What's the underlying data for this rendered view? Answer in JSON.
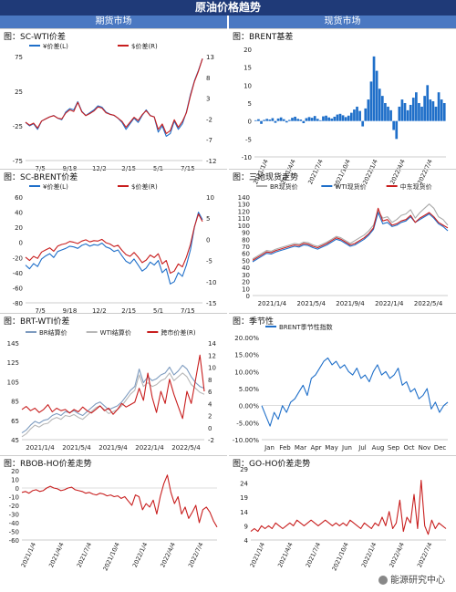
{
  "header": {
    "title": "原油价格趋势"
  },
  "columns": {
    "left": "期货市场",
    "right": "现货市场"
  },
  "watermark": "能源研究中心",
  "colors": {
    "blue": "#1f6fc9",
    "red": "#c81e1e",
    "gray": "#a9a9a9",
    "banner": "#1f3a78",
    "colhead": "#4a78c2"
  },
  "chart_data": [
    {
      "id": "sc-wti",
      "title": "图：SC-WTI价差",
      "type": "line",
      "x_ticks": [
        "7/5",
        "9/18",
        "12/2",
        "2/15",
        "5/1",
        "7/15"
      ],
      "ylim_left": [
        -75,
        75
      ],
      "yticks_left": [
        -75,
        -25,
        25,
        75
      ],
      "ylim_right": [
        -12,
        13
      ],
      "yticks_right": [
        -12,
        -7,
        -2,
        3,
        8,
        13
      ],
      "legend": "top",
      "series": [
        {
          "name": "¥价差(L)",
          "color": "#1f6fc9",
          "axis": "left",
          "values": [
            -20,
            -25,
            -22,
            -30,
            -18,
            -15,
            -12,
            -10,
            -14,
            -16,
            -5,
            0,
            -2,
            10,
            -4,
            -10,
            -6,
            -2,
            4,
            2,
            -5,
            -8,
            -10,
            -14,
            -20,
            -30,
            -22,
            -14,
            -20,
            -10,
            -2,
            -10,
            -12,
            -34,
            -25,
            -40,
            -36,
            -18,
            -30,
            -22,
            -5,
            20,
            40,
            55,
            72
          ]
        },
        {
          "name": "$价差(R)",
          "color": "#c81e1e",
          "axis": "right",
          "values": [
            -2.8,
            -3.5,
            -3.0,
            -4.2,
            -2.5,
            -2.0,
            -1.5,
            -1.2,
            -1.8,
            -2.0,
            -0.6,
            0.2,
            -0.2,
            2.0,
            -0.3,
            -1.2,
            -0.7,
            -0.1,
            0.9,
            0.6,
            -0.5,
            -0.9,
            -1.1,
            -1.8,
            -2.6,
            -4.0,
            -2.8,
            -1.6,
            -2.4,
            -1.0,
            0.0,
            -1.2,
            -1.5,
            -4.5,
            -3.2,
            -5.5,
            -4.8,
            -2.2,
            -4.0,
            -2.6,
            -0.5,
            3.5,
            7.0,
            9.5,
            12.5
          ]
        }
      ]
    },
    {
      "id": "brent-basis",
      "title": "图：BRENT基差",
      "type": "bar",
      "x_ticks": [
        "2021/1/4",
        "2021/4/4",
        "2021/7/4",
        "2021/10/4",
        "2022/1/4",
        "2022/4/4",
        "2022/7/4"
      ],
      "ylim": [
        -10,
        20
      ],
      "yticks": [
        -10,
        -5,
        0,
        5,
        10,
        15,
        20
      ],
      "series": [
        {
          "name": "BRENT基差",
          "color": "#1f6fc9",
          "values": [
            0.2,
            0.5,
            -0.8,
            0.3,
            0.6,
            0.4,
            0.8,
            -0.5,
            0.7,
            1.0,
            0.5,
            -0.4,
            0.3,
            0.9,
            1.2,
            0.6,
            0.4,
            -0.6,
            0.8,
            1.1,
            0.9,
            1.4,
            0.6,
            0.2,
            1.3,
            1.5,
            1.0,
            0.7,
            1.2,
            1.8,
            2.0,
            1.6,
            1.1,
            1.5,
            2.3,
            3.2,
            4.0,
            2.8,
            -1.5,
            3.5,
            6.0,
            11.0,
            18.0,
            14.0,
            9.0,
            7.0,
            5.0,
            4.0,
            3.0,
            -2.5,
            -5.0,
            4.0,
            6.0,
            5.0,
            3.0,
            4.5,
            6.5,
            8.0,
            5.0,
            4.0,
            7.0,
            10.0,
            6.0,
            5.5,
            4.0,
            8.0,
            6.0,
            5.0
          ]
        }
      ]
    },
    {
      "id": "sc-brent",
      "title": "图：SC-BRENT价差",
      "type": "line",
      "x_ticks": [
        "7/5",
        "9/18",
        "12/2",
        "2/15",
        "5/1",
        "7/15"
      ],
      "ylim_left": [
        -80,
        60
      ],
      "yticks_left": [
        -80,
        -60,
        -40,
        -20,
        0,
        20,
        40,
        60
      ],
      "ylim_right": [
        -15,
        10
      ],
      "yticks_right": [
        -15,
        -10,
        -5,
        0,
        5,
        10
      ],
      "legend": "top",
      "series": [
        {
          "name": "¥价差(L)",
          "color": "#1f6fc9",
          "axis": "left",
          "values": [
            -30,
            -35,
            -28,
            -32,
            -22,
            -18,
            -15,
            -20,
            -12,
            -10,
            -8,
            -5,
            -6,
            -8,
            -4,
            -2,
            -5,
            -3,
            -4,
            -1,
            -6,
            -8,
            -12,
            -10,
            -18,
            -25,
            -28,
            -22,
            -30,
            -38,
            -34,
            -26,
            -30,
            -24,
            -40,
            -35,
            -55,
            -52,
            -40,
            -45,
            -30,
            -10,
            20,
            40,
            30
          ]
        },
        {
          "name": "$价差(R)",
          "color": "#c81e1e",
          "axis": "right",
          "values": [
            -4.2,
            -5.0,
            -4.0,
            -4.5,
            -3.0,
            -2.5,
            -2.0,
            -2.8,
            -1.6,
            -1.2,
            -1.0,
            -0.5,
            -0.7,
            -1.0,
            -0.4,
            -0.1,
            -0.6,
            -0.3,
            -0.4,
            0.0,
            -0.8,
            -1.1,
            -1.7,
            -1.4,
            -2.6,
            -3.6,
            -4.0,
            -3.1,
            -4.2,
            -5.5,
            -4.9,
            -3.7,
            -4.3,
            -3.4,
            -5.8,
            -5.0,
            -8.0,
            -7.5,
            -5.8,
            -6.5,
            -4.2,
            -1.2,
            3.0,
            6.0,
            4.2
          ]
        }
      ]
    },
    {
      "id": "three-spot",
      "title": "图：三地现货走势",
      "type": "line",
      "x_ticks": [
        "2021/1/4",
        "2021/5/4",
        "2021/9/4",
        "2022/1/4",
        "2022/5/4"
      ],
      "ylim": [
        0,
        140
      ],
      "yticks": [
        0,
        10,
        20,
        30,
        40,
        50,
        60,
        70,
        80,
        90,
        100,
        110,
        120,
        130,
        140
      ],
      "legend": "top",
      "series": [
        {
          "name": "BR现货价",
          "color": "#a9a9a9",
          "values": [
            52,
            56,
            60,
            64,
            63,
            66,
            68,
            70,
            72,
            74,
            73,
            76,
            75,
            72,
            70,
            73,
            76,
            80,
            84,
            82,
            78,
            74,
            78,
            82,
            86,
            92,
            100,
            120,
            110,
            112,
            104,
            108,
            114,
            116,
            122,
            110,
            118,
            124,
            130,
            124,
            112,
            108,
            100
          ]
        },
        {
          "name": "WTI现货价",
          "color": "#1f6fc9",
          "values": [
            48,
            52,
            56,
            60,
            59,
            62,
            64,
            66,
            68,
            70,
            69,
            72,
            71,
            68,
            66,
            69,
            72,
            76,
            80,
            78,
            74,
            70,
            72,
            76,
            80,
            86,
            94,
            118,
            102,
            104,
            98,
            100,
            104,
            106,
            112,
            104,
            108,
            112,
            116,
            110,
            102,
            98,
            92
          ]
        },
        {
          "name": "中东现货价",
          "color": "#c81e1e",
          "values": [
            50,
            54,
            58,
            62,
            61,
            64,
            66,
            68,
            70,
            72,
            71,
            74,
            73,
            70,
            68,
            71,
            74,
            78,
            82,
            80,
            76,
            72,
            74,
            78,
            82,
            88,
            96,
            124,
            106,
            108,
            100,
            102,
            106,
            108,
            114,
            104,
            110,
            114,
            118,
            112,
            104,
            100,
            96
          ]
        }
      ]
    },
    {
      "id": "brt-wti",
      "title": "图：BRT-WTI价差",
      "type": "line",
      "x_ticks": [
        "2021/1/4",
        "2021/5/4",
        "2021/9/4",
        "2022/1/4",
        "2022/5/4"
      ],
      "ylim_left": [
        45,
        145
      ],
      "yticks_left": [
        45,
        65,
        85,
        105,
        125,
        145
      ],
      "ylim_right": [
        -2,
        14
      ],
      "yticks_right": [
        -2,
        0,
        2,
        4,
        6,
        8,
        10,
        12,
        14
      ],
      "legend": "top",
      "series": [
        {
          "name": "BR结算价",
          "color": "#7d9bbf",
          "axis": "left",
          "values": [
            52,
            55,
            60,
            64,
            62,
            65,
            66,
            70,
            72,
            70,
            74,
            73,
            75,
            72,
            70,
            74,
            78,
            82,
            84,
            80,
            76,
            78,
            80,
            84,
            90,
            96,
            100,
            118,
            104,
            110,
            106,
            108,
            112,
            114,
            120,
            112,
            116,
            122,
            118,
            110,
            104,
            100,
            98
          ]
        },
        {
          "name": "WTI结算价",
          "color": "#b7b7b7",
          "axis": "left",
          "values": [
            48,
            51,
            56,
            60,
            58,
            61,
            62,
            66,
            68,
            66,
            70,
            69,
            71,
            68,
            66,
            70,
            74,
            78,
            80,
            76,
            72,
            74,
            76,
            80,
            86,
            92,
            96,
            112,
            100,
            104,
            100,
            102,
            106,
            108,
            114,
            106,
            110,
            114,
            110,
            102,
            98,
            94,
            92
          ]
        },
        {
          "name": "跨市价差(R)",
          "color": "#c81e1e",
          "axis": "right",
          "values": [
            3.0,
            3.5,
            2.8,
            3.2,
            2.5,
            3.0,
            3.8,
            2.6,
            3.2,
            2.8,
            3.0,
            2.4,
            3.0,
            2.6,
            3.4,
            2.8,
            2.4,
            3.0,
            3.6,
            2.8,
            3.2,
            2.2,
            3.0,
            4.0,
            3.4,
            3.8,
            4.2,
            6.5,
            4.5,
            9.0,
            5.0,
            2.5,
            6.0,
            4.0,
            8.0,
            5.5,
            3.5,
            1.5,
            6.0,
            4.0,
            8.0,
            12.0,
            6.0
          ]
        }
      ]
    },
    {
      "id": "seasonal",
      "title": "图：季节性",
      "type": "line",
      "x_ticks": [
        "Jan",
        "Feb",
        "Mar",
        "Apr",
        "May",
        "Jun",
        "Jul",
        "Aug",
        "Sep",
        "Oct",
        "Nov",
        "Dec"
      ],
      "ylim": [
        -10,
        20
      ],
      "yticks": [
        "-10.00%",
        "-5.00%",
        "0.00%",
        "5.00%",
        "10.00%",
        "15.00%",
        "20.00%"
      ],
      "legend": "top",
      "series": [
        {
          "name": "BRENT季节性指数",
          "color": "#1f6fc9",
          "values": [
            0,
            -3,
            -6,
            -2,
            -4,
            0,
            -2,
            1,
            2,
            4,
            6,
            3,
            8,
            9,
            11,
            13,
            14,
            12,
            13,
            11,
            12,
            10,
            9,
            11,
            8,
            9,
            7,
            10,
            12,
            9,
            10,
            8,
            9,
            11,
            6,
            7,
            4,
            5,
            2,
            3,
            5,
            -1,
            1,
            -2,
            0,
            1
          ]
        }
      ]
    },
    {
      "id": "rbob-ho",
      "title": "图：RBOB-HO价差走势",
      "type": "line",
      "x_ticks": [
        "2021/1/4",
        "2021/4/4",
        "2021/7/4",
        "2021/10/4",
        "2022/1/4",
        "2022/4/4",
        "2022/7/4"
      ],
      "ylim": [
        -60,
        20
      ],
      "yticks": [
        -60,
        -50,
        -40,
        -30,
        -20,
        -10,
        0,
        10,
        20
      ],
      "series": [
        {
          "name": "RBOB-HO价差",
          "color": "#c81e1e",
          "values": [
            -5,
            -4,
            -6,
            -3,
            -2,
            -4,
            -3,
            0,
            2,
            0,
            -1,
            -3,
            -2,
            0,
            1,
            -2,
            -3,
            -4,
            -6,
            -5,
            -7,
            -8,
            -6,
            -7,
            -9,
            -8,
            -10,
            -9,
            -12,
            -10,
            -15,
            -20,
            -8,
            -10,
            -25,
            -18,
            -22,
            -14,
            -30,
            -10,
            5,
            15,
            -5,
            -18,
            -10,
            -30,
            -22,
            -35,
            -28,
            -20,
            -40,
            -25,
            -22,
            -28,
            -38,
            -45
          ]
        }
      ]
    },
    {
      "id": "go-ho",
      "title": "图：GO-HO价差走势",
      "type": "line",
      "x_ticks": [
        "2021/1/4",
        "2021/4/4",
        "2021/7/4",
        "2021/10/4",
        "2022/1/4",
        "2022/4/4",
        "2022/7/4"
      ],
      "ylim": [
        4,
        29
      ],
      "yticks": [
        4,
        9,
        14,
        19,
        24,
        29
      ],
      "series": [
        {
          "name": "GO-HO价差",
          "color": "#c81e1e",
          "values": [
            7,
            8,
            7,
            9,
            8,
            9,
            8,
            10,
            9,
            8,
            9,
            10,
            9,
            11,
            10,
            9,
            10,
            11,
            10,
            9,
            10,
            11,
            10,
            9,
            10,
            9,
            10,
            9,
            11,
            10,
            9,
            8,
            10,
            9,
            8,
            10,
            9,
            12,
            9,
            14,
            8,
            10,
            18,
            7,
            12,
            10,
            20,
            8,
            25,
            9,
            6,
            11,
            8,
            10,
            9,
            8
          ]
        }
      ]
    }
  ]
}
